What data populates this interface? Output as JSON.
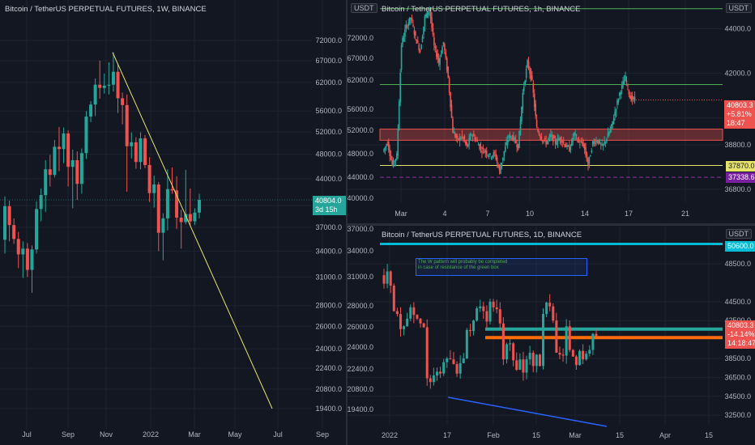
{
  "left": {
    "title": "Bitcoin / TetherUS PERPETUAL FUTURES, 1W, BINANCE",
    "price_tag": {
      "value": "40804.0",
      "sub": "3d 15h"
    },
    "colors": {
      "up": "#26a69a",
      "down": "#ef5350",
      "trend": "#e6e36b"
    }
  },
  "topright": {
    "title": "Bitcoin / TetherUS PERPETUAL FUTURES, 1h, BINANCE",
    "unit": "USDT",
    "tags": {
      "price": "40803.3",
      "pct": "+5.81%",
      "time": "18:47",
      "yellow": "37870.0",
      "purple": "37338.6"
    },
    "colors": {
      "resistance": "#4caf50",
      "support": "#e6e36b",
      "dashed": "#9c27b0",
      "zone": "#ef5350"
    }
  },
  "bottomright": {
    "title": "Bitcoin / TetherUS PERPETUAL FUTURES, 1D, BINANCE",
    "unit": "USDT",
    "tags": {
      "cyan": "50600.0",
      "price": "40803.3",
      "pct": "-14.14%",
      "time": "14:18:47"
    },
    "note": [
      "The W pattern will probably be completed",
      "in case of resistance of the green box"
    ],
    "colors": {
      "cyan": "#00bcd4",
      "orange": "#ff6d00",
      "blue": "#2962ff",
      "teal": "#26a69a"
    }
  },
  "chart_data": [
    {
      "type": "candlestick",
      "title": "Bitcoin / TetherUS PERPETUAL FUTURES, 1W, BINANCE",
      "x_ticks": [
        "Jul",
        "Sep",
        "Nov",
        "2022",
        "Mar",
        "May",
        "Jul",
        "Sep"
      ],
      "y_ticks": [
        19400,
        20800,
        22400,
        24000,
        26000,
        28000,
        31000,
        34000,
        37000,
        40000,
        44000,
        48000,
        52000,
        56000,
        62000,
        67000,
        72000
      ],
      "ylim": [
        19400,
        72000
      ],
      "log_scale": true,
      "last_price": 40804.0,
      "trendline": {
        "from": [
          "Nov 2021",
          69000
        ],
        "to": [
          "Jul 2022",
          17600
        ]
      },
      "approx_weekly": [
        {
          "o": 35400,
          "h": 41300,
          "l": 33700,
          "c": 39900
        },
        {
          "o": 39900,
          "h": 40700,
          "l": 35200,
          "c": 37300
        },
        {
          "o": 37300,
          "h": 38200,
          "l": 34900,
          "c": 35500
        },
        {
          "o": 35500,
          "h": 36400,
          "l": 32000,
          "c": 33600
        },
        {
          "o": 33600,
          "h": 35200,
          "l": 30900,
          "c": 34300
        },
        {
          "o": 34300,
          "h": 35000,
          "l": 31000,
          "c": 31800
        },
        {
          "o": 31800,
          "h": 34700,
          "l": 29300,
          "c": 34200
        },
        {
          "o": 34200,
          "h": 40600,
          "l": 33700,
          "c": 39500
        },
        {
          "o": 39500,
          "h": 42500,
          "l": 37800,
          "c": 41500
        },
        {
          "o": 41500,
          "h": 47000,
          "l": 39100,
          "c": 45500
        },
        {
          "o": 45500,
          "h": 47900,
          "l": 42800,
          "c": 44600
        },
        {
          "o": 44600,
          "h": 50500,
          "l": 44200,
          "c": 49300
        },
        {
          "o": 49300,
          "h": 52900,
          "l": 45200,
          "c": 48900
        },
        {
          "o": 48900,
          "h": 52800,
          "l": 46500,
          "c": 51700
        },
        {
          "o": 51700,
          "h": 52300,
          "l": 42800,
          "c": 45900
        },
        {
          "o": 45900,
          "h": 48800,
          "l": 39600,
          "c": 47000
        },
        {
          "o": 47000,
          "h": 48500,
          "l": 40800,
          "c": 43200
        },
        {
          "o": 43200,
          "h": 49000,
          "l": 41700,
          "c": 48200
        },
        {
          "o": 48200,
          "h": 56000,
          "l": 47200,
          "c": 54900
        },
        {
          "o": 54900,
          "h": 58000,
          "l": 53800,
          "c": 57300
        },
        {
          "o": 57300,
          "h": 62900,
          "l": 55000,
          "c": 61500
        },
        {
          "o": 61500,
          "h": 67000,
          "l": 58500,
          "c": 60800
        },
        {
          "o": 60800,
          "h": 64000,
          "l": 59600,
          "c": 61300
        },
        {
          "o": 61300,
          "h": 66600,
          "l": 59400,
          "c": 61500
        },
        {
          "o": 61500,
          "h": 69000,
          "l": 60000,
          "c": 64400
        },
        {
          "o": 64400,
          "h": 66300,
          "l": 55600,
          "c": 58600
        },
        {
          "o": 58600,
          "h": 59800,
          "l": 53400,
          "c": 57200
        },
        {
          "o": 57200,
          "h": 59400,
          "l": 42000,
          "c": 49400
        },
        {
          "o": 49400,
          "h": 51900,
          "l": 47300,
          "c": 50100
        },
        {
          "o": 50100,
          "h": 51000,
          "l": 45600,
          "c": 46700
        },
        {
          "o": 46700,
          "h": 51900,
          "l": 45500,
          "c": 50800
        },
        {
          "o": 50800,
          "h": 51400,
          "l": 45700,
          "c": 46200
        },
        {
          "o": 46200,
          "h": 47500,
          "l": 40500,
          "c": 41800
        },
        {
          "o": 41800,
          "h": 44500,
          "l": 39700,
          "c": 43100
        },
        {
          "o": 43100,
          "h": 43500,
          "l": 34000,
          "c": 36300
        },
        {
          "o": 36300,
          "h": 38900,
          "l": 32900,
          "c": 38200
        },
        {
          "o": 38200,
          "h": 45500,
          "l": 36600,
          "c": 42400
        },
        {
          "o": 42400,
          "h": 45800,
          "l": 41700,
          "c": 42200
        },
        {
          "o": 42200,
          "h": 44400,
          "l": 36800,
          "c": 38300
        },
        {
          "o": 38300,
          "h": 39400,
          "l": 34300,
          "c": 37700
        },
        {
          "o": 37700,
          "h": 45400,
          "l": 37400,
          "c": 38800
        },
        {
          "o": 38800,
          "h": 42500,
          "l": 37200,
          "c": 37800
        },
        {
          "o": 37800,
          "h": 39600,
          "l": 37300,
          "c": 39000
        },
        {
          "o": 39000,
          "h": 41700,
          "l": 38200,
          "c": 40804
        }
      ]
    },
    {
      "type": "candlestick",
      "title": "Bitcoin / TetherUS PERPETUAL FUTURES, 1h, BINANCE",
      "x_ticks": [
        "Mar",
        "4",
        "7",
        "10",
        "14",
        "17",
        "21"
      ],
      "y_ticks": [
        36800,
        37870,
        38800,
        40000,
        42000,
        44000
      ],
      "ylim": [
        36400,
        45000
      ],
      "last_price": 40803.3,
      "change_pct": "+5.81%",
      "levels": {
        "resistance": 41500,
        "zone": [
          39200,
          39500
        ],
        "support": 37870,
        "dashed": 37338.6,
        "top_line": 44900
      },
      "approx_path": [
        38500,
        38900,
        37900,
        38300,
        43300,
        44100,
        44500,
        43600,
        43000,
        44500,
        44900,
        43200,
        42500,
        43400,
        41800,
        39400,
        39000,
        39200,
        38700,
        39300,
        39000,
        38600,
        38500,
        38300,
        38400,
        37600,
        38500,
        39200,
        39100,
        38700,
        41100,
        42500,
        41600,
        39500,
        39100,
        38900,
        39200,
        38900,
        39100,
        38800,
        38600,
        39300,
        38900,
        38800,
        37900,
        38900,
        39000,
        38700,
        39100,
        39600,
        40500,
        41300,
        41800,
        40900,
        40803
      ]
    },
    {
      "type": "candlestick",
      "title": "Bitcoin / TetherUS PERPETUAL FUTURES, 1D, BINANCE",
      "x_ticks": [
        "2022",
        "17",
        "Feb",
        "15",
        "Mar",
        "15",
        "Apr",
        "15"
      ],
      "y_ticks": [
        32500,
        34500,
        36500,
        38500,
        40803.3,
        42500,
        44500,
        48500,
        50600
      ],
      "ylim": [
        32000,
        51500
      ],
      "last_price": 40803.3,
      "change_pct": "-14.14%",
      "levels": {
        "cyan": 50600,
        "teal": 41600,
        "orange": 40700
      },
      "approx_closes": [
        47300,
        46400,
        47700,
        46200,
        43500,
        43200,
        41600,
        41900,
        42700,
        43900,
        43100,
        42700,
        42200,
        41800,
        36400,
        36000,
        36700,
        37100,
        36900,
        38100,
        38500,
        38400,
        37900,
        36900,
        38000,
        38500,
        41500,
        41400,
        42500,
        43800,
        44000,
        43500,
        42400,
        44500,
        43900,
        43700,
        42200,
        38400,
        40000,
        40100,
        38300,
        37300,
        38400,
        37000,
        38400,
        39100,
        37700,
        38900,
        37700,
        43200,
        44400,
        44000,
        42500,
        39100,
        38900,
        38800,
        41900,
        39400,
        38700,
        37800,
        39300,
        38400,
        39000,
        39400,
        41100,
        40803
      ]
    }
  ]
}
